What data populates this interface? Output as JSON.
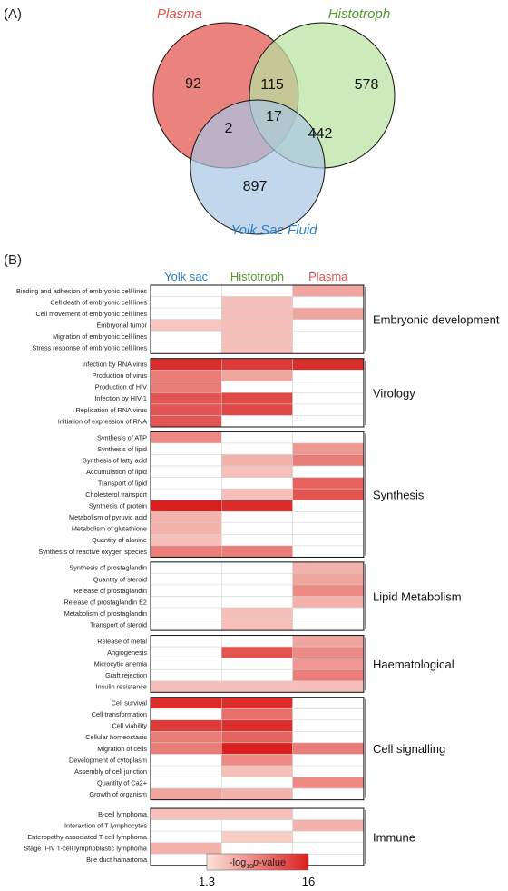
{
  "panel_a": {
    "label": "(A)",
    "sets": [
      {
        "name": "Plasma",
        "color": "#e3544f"
      },
      {
        "name": "Histotroph",
        "color": "#4f9a2c"
      },
      {
        "name": "Yolk Sac Fluid",
        "color": "#2f7fbf"
      }
    ],
    "regions": {
      "plasma_only": "92",
      "plasma_histotroph": "115",
      "histotroph_only": "578",
      "plasma_yolk": "2",
      "all_three": "17",
      "histotroph_yolk": "442",
      "yolk_only": "897"
    }
  },
  "panel_b": {
    "label": "(B)",
    "columns": [
      {
        "name": "Yolk sac",
        "color": "#2f7fbf"
      },
      {
        "name": "Histotroph",
        "color": "#4f9a2c"
      },
      {
        "name": "Plasma",
        "color": "#e3544f"
      }
    ],
    "groups": [
      {
        "name": "Embryonic development",
        "rows": [
          {
            "label": "Binding and adhesion of embryonic cell lines",
            "values": [
              null,
              null,
              6
            ]
          },
          {
            "label": "Cell death of embryonic cell lines",
            "values": [
              null,
              4,
              null
            ]
          },
          {
            "label": "Cell movement of embryonic cell lines",
            "values": [
              null,
              4,
              6
            ]
          },
          {
            "label": "Embryonal tumor",
            "values": [
              3.5,
              4,
              null
            ]
          },
          {
            "label": "Migration of embryonic cell lines",
            "values": [
              null,
              4,
              null
            ]
          },
          {
            "label": "Stress response of embryonic cell lines",
            "values": [
              null,
              4,
              null
            ]
          }
        ]
      },
      {
        "name": "Virology",
        "rows": [
          {
            "label": "Infection by RNA virus",
            "values": [
              15,
              14,
              15
            ]
          },
          {
            "label": "Production of virus",
            "values": [
              9,
              6,
              null
            ]
          },
          {
            "label": "Production of HIV",
            "values": [
              9,
              null,
              null
            ]
          },
          {
            "label": "Infection by HIV-1",
            "values": [
              12,
              13,
              null
            ]
          },
          {
            "label": "Replication of RNA virus",
            "values": [
              12,
              13,
              null
            ]
          },
          {
            "label": "Initiation of expression of RNA",
            "values": [
              12,
              null,
              null
            ]
          }
        ]
      },
      {
        "name": "Synthesis",
        "rows": [
          {
            "label": "Synthesis of ATP",
            "values": [
              8,
              null,
              null
            ]
          },
          {
            "label": "Synthesis of lipid",
            "values": [
              null,
              null,
              7
            ]
          },
          {
            "label": "Synthesis of fatty acid",
            "values": [
              null,
              5,
              9
            ]
          },
          {
            "label": "Accumulation of lipid",
            "values": [
              null,
              4,
              null
            ]
          },
          {
            "label": "Transport of lipid",
            "values": [
              null,
              null,
              11
            ]
          },
          {
            "label": "Cholesterol transport",
            "values": [
              null,
              4,
              12
            ]
          },
          {
            "label": "Synthesis of protein",
            "values": [
              16,
              15,
              null
            ]
          },
          {
            "label": "Metabolism of pyruvic acid",
            "values": [
              5,
              null,
              null
            ]
          },
          {
            "label": "Metabolism of glutathione",
            "values": [
              5,
              null,
              null
            ]
          },
          {
            "label": "Quantity of alanine",
            "values": [
              4,
              null,
              null
            ]
          },
          {
            "label": "Synthesis of reactive oxygen species",
            "values": [
              9,
              9,
              null
            ]
          }
        ]
      },
      {
        "name": "Lipid Metabolism",
        "rows": [
          {
            "label": "Synthesis of prostaglandin",
            "values": [
              null,
              null,
              5
            ]
          },
          {
            "label": "Quantity of steroid",
            "values": [
              null,
              null,
              6
            ]
          },
          {
            "label": "Release of prostaglandin",
            "values": [
              null,
              null,
              8
            ]
          },
          {
            "label": "Release of prostaglandin E2",
            "values": [
              null,
              null,
              5
            ]
          },
          {
            "label": "Metabolism of prostaglandin",
            "values": [
              null,
              4,
              null
            ]
          },
          {
            "label": "Transport of steroid",
            "values": [
              null,
              4,
              null
            ]
          }
        ]
      },
      {
        "name": "Haematological",
        "rows": [
          {
            "label": "Release of metal",
            "values": [
              null,
              null,
              6
            ]
          },
          {
            "label": "Angiogenesis",
            "values": [
              null,
              12,
              8
            ]
          },
          {
            "label": "Microcytic anemia",
            "values": [
              null,
              null,
              7
            ]
          },
          {
            "label": "Graft rejection",
            "values": [
              null,
              null,
              9
            ]
          },
          {
            "label": "Insulin resistance",
            "values": [
              4,
              4,
              4
            ]
          }
        ]
      },
      {
        "name": "Cell signalling",
        "rows": [
          {
            "label": "Cell survival",
            "values": [
              15,
              15,
              null
            ]
          },
          {
            "label": "Cell transformation",
            "values": [
              null,
              10,
              null
            ]
          },
          {
            "label": "Cell viability",
            "values": [
              14,
              15,
              null
            ]
          },
          {
            "label": "Cellular homeostasis",
            "values": [
              9,
              11,
              null
            ]
          },
          {
            "label": "Migration of cells",
            "values": [
              9,
              16,
              9
            ]
          },
          {
            "label": "Development of cytoplasm",
            "values": [
              null,
              8,
              null
            ]
          },
          {
            "label": "Assembly of cell junction",
            "values": [
              null,
              4,
              null
            ]
          },
          {
            "label": "Quantity of Ca2+",
            "values": [
              null,
              null,
              8
            ]
          },
          {
            "label": "Growth of organism",
            "values": [
              6,
              5,
              null
            ]
          }
        ]
      },
      {
        "name": "Immune",
        "rows": [
          {
            "label": "B-cell lymphoma",
            "values": [
              4,
              4,
              null
            ]
          },
          {
            "label": "Interaction of T lymphocytes",
            "values": [
              null,
              null,
              5
            ]
          },
          {
            "label": "Enteropathy-associated T-cell lymphoma",
            "values": [
              null,
              3,
              null
            ]
          },
          {
            "label": "Stage II-IV T-cell lymphoblastic lymphoma",
            "values": [
              5,
              null,
              null
            ]
          },
          {
            "label": "Bile duct hamartoma",
            "values": [
              null,
              4,
              null
            ]
          }
        ]
      }
    ],
    "colorbar": {
      "min_label": "1.3",
      "max_label": "16",
      "min": 1.3,
      "max": 16,
      "title_prefix": "-log",
      "title_sub": "10",
      "title_italic": "p",
      "title_suffix": "-value",
      "low_color": "#fde3dc",
      "high_color": "#d9201e"
    }
  }
}
